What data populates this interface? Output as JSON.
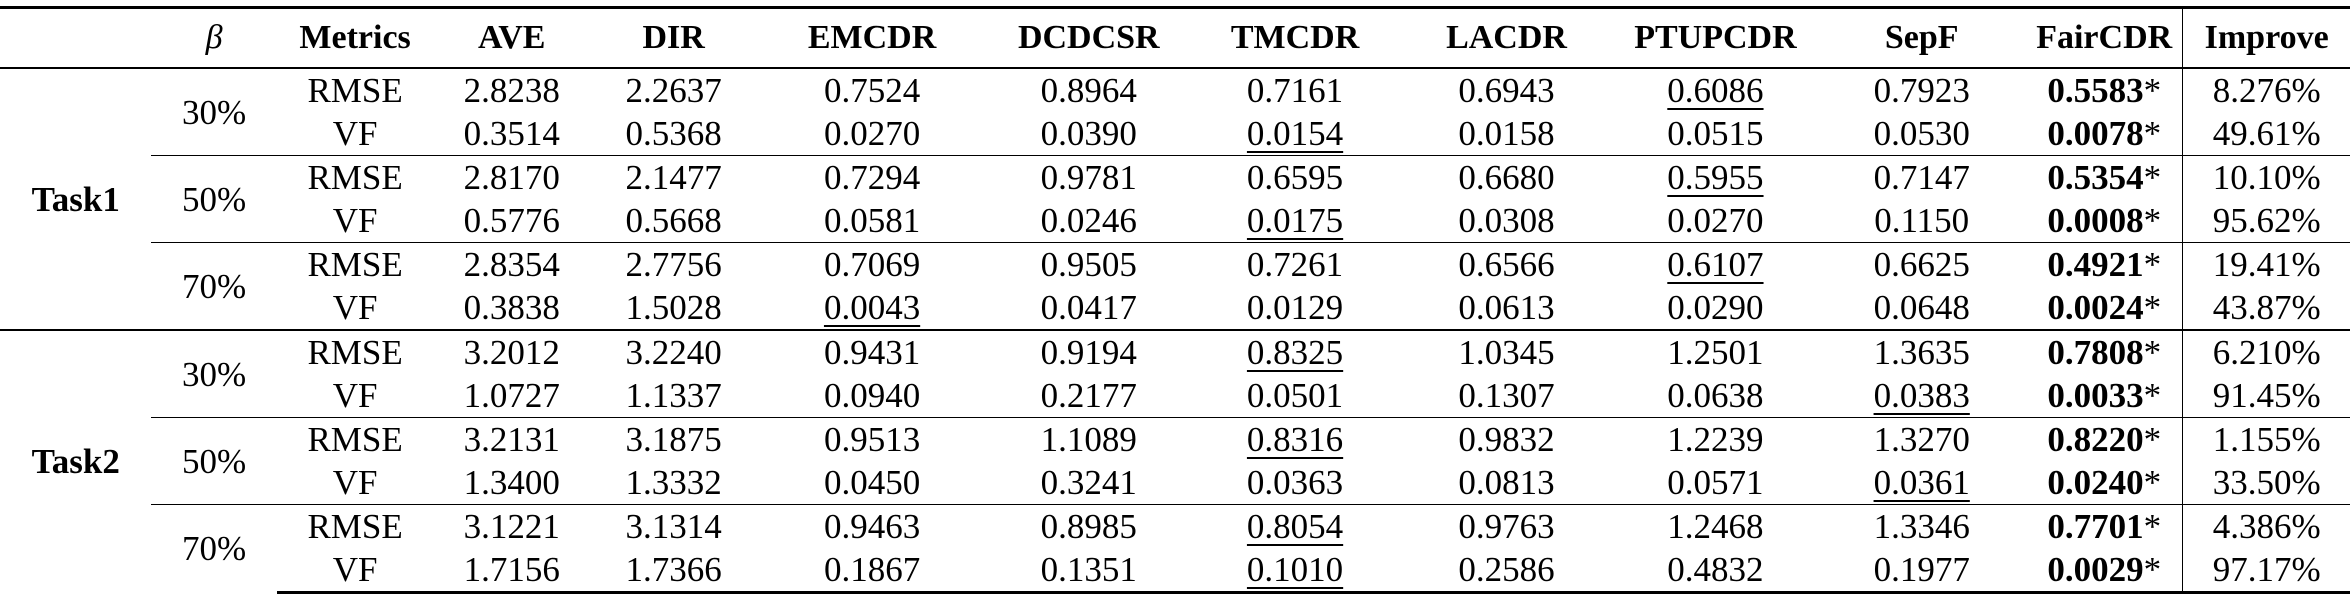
{
  "columns": [
    "β",
    "Metrics",
    "AVE",
    "DIR",
    "EMCDR",
    "DCDCSR",
    "TMCDR",
    "LACDR",
    "PTUPCDR",
    "SepF",
    "FairCDR",
    "Improve"
  ],
  "tasks": [
    {
      "name": "Task1",
      "groups": [
        {
          "beta": "30%",
          "rows": [
            {
              "metric": "RMSE",
              "values": [
                "2.8238",
                "2.2637",
                "0.7524",
                "0.8964",
                "0.7161",
                "0.6943",
                "0.6086",
                "0.7923",
                "0.5583",
                "8.276%"
              ],
              "underline_index": 6,
              "bold_index": 8,
              "mark": "*"
            },
            {
              "metric": "VF",
              "values": [
                "0.3514",
                "0.5368",
                "0.0270",
                "0.0390",
                "0.0154",
                "0.0158",
                "0.0515",
                "0.0530",
                "0.0078",
                "49.61%"
              ],
              "underline_index": 4,
              "bold_index": 8,
              "mark": "*"
            }
          ]
        },
        {
          "beta": "50%",
          "rows": [
            {
              "metric": "RMSE",
              "values": [
                "2.8170",
                "2.1477",
                "0.7294",
                "0.9781",
                "0.6595",
                "0.6680",
                "0.5955",
                "0.7147",
                "0.5354",
                "10.10%"
              ],
              "underline_index": 6,
              "bold_index": 8,
              "mark": "*"
            },
            {
              "metric": "VF",
              "values": [
                "0.5776",
                "0.5668",
                "0.0581",
                "0.0246",
                "0.0175",
                "0.0308",
                "0.0270",
                "0.1150",
                "0.0008",
                "95.62%"
              ],
              "underline_index": 4,
              "bold_index": 8,
              "mark": "*"
            }
          ]
        },
        {
          "beta": "70%",
          "rows": [
            {
              "metric": "RMSE",
              "values": [
                "2.8354",
                "2.7756",
                "0.7069",
                "0.9505",
                "0.7261",
                "0.6566",
                "0.6107",
                "0.6625",
                "0.4921",
                "19.41%"
              ],
              "underline_index": 6,
              "bold_index": 8,
              "mark": "*"
            },
            {
              "metric": "VF",
              "values": [
                "0.3838",
                "1.5028",
                "0.0043",
                "0.0417",
                "0.0129",
                "0.0613",
                "0.0290",
                "0.0648",
                "0.0024",
                "43.87%"
              ],
              "underline_index": 2,
              "bold_index": 8,
              "mark": "*"
            }
          ]
        }
      ]
    },
    {
      "name": "Task2",
      "groups": [
        {
          "beta": "30%",
          "rows": [
            {
              "metric": "RMSE",
              "values": [
                "3.2012",
                "3.2240",
                "0.9431",
                "0.9194",
                "0.8325",
                "1.0345",
                "1.2501",
                "1.3635",
                "0.7808",
                "6.210%"
              ],
              "underline_index": 4,
              "bold_index": 8,
              "mark": "*"
            },
            {
              "metric": "VF",
              "values": [
                "1.0727",
                "1.1337",
                "0.0940",
                "0.2177",
                "0.0501",
                "0.1307",
                "0.0638",
                "0.0383",
                "0.0033",
                "91.45%"
              ],
              "underline_index": 7,
              "bold_index": 8,
              "mark": "*"
            }
          ]
        },
        {
          "beta": "50%",
          "rows": [
            {
              "metric": "RMSE",
              "values": [
                "3.2131",
                "3.1875",
                "0.9513",
                "1.1089",
                "0.8316",
                "0.9832",
                "1.2239",
                "1.3270",
                "0.8220",
                "1.155%"
              ],
              "underline_index": 4,
              "bold_index": 8,
              "mark": "*"
            },
            {
              "metric": "VF",
              "values": [
                "1.3400",
                "1.3332",
                "0.0450",
                "0.3241",
                "0.0363",
                "0.0813",
                "0.0571",
                "0.0361",
                "0.0240",
                "33.50%"
              ],
              "underline_index": 7,
              "bold_index": 8,
              "mark": "*"
            }
          ]
        },
        {
          "beta": "70%",
          "rows": [
            {
              "metric": "RMSE",
              "values": [
                "3.1221",
                "3.1314",
                "0.9463",
                "0.8985",
                "0.8054",
                "0.9763",
                "1.2468",
                "1.3346",
                "0.7701",
                "4.386%"
              ],
              "underline_index": 4,
              "bold_index": 8,
              "mark": "*"
            },
            {
              "metric": "VF",
              "values": [
                "1.7156",
                "1.7366",
                "0.1867",
                "0.1351",
                "0.1010",
                "0.2586",
                "0.4832",
                "0.1977",
                "0.0029",
                "97.17%"
              ],
              "underline_index": 4,
              "bold_index": 8,
              "mark": "*"
            }
          ]
        }
      ]
    }
  ]
}
